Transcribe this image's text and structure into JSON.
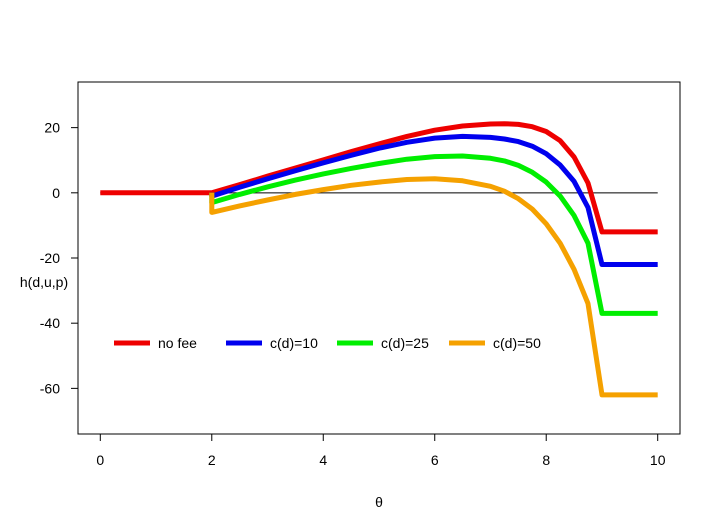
{
  "chart_data": {
    "type": "line",
    "title": "",
    "xlabel": "θ",
    "ylabel": "h(d,u,p)",
    "xlim": [
      -0.4,
      10.4
    ],
    "ylim": [
      -74,
      34
    ],
    "xticks": [
      0,
      2,
      4,
      6,
      8,
      10
    ],
    "yticks": [
      20,
      0,
      -20,
      -40,
      -60
    ],
    "grid": false,
    "legend_position": "bottom-left",
    "reference_line": {
      "y": 0,
      "x_from": 0,
      "x_to": 10,
      "color": "#000000"
    },
    "series": [
      {
        "name": "no fee",
        "color": "#ee0000",
        "x": [
          0,
          2,
          2.5,
          3,
          3.5,
          4,
          4.5,
          5,
          5.5,
          6,
          6.5,
          7,
          7.25,
          7.5,
          7.75,
          8,
          8.25,
          8.5,
          8.75,
          9,
          10
        ],
        "y": [
          0,
          0,
          2.5,
          5.1,
          7.6,
          10.1,
          12.6,
          15,
          17.3,
          19.2,
          20.5,
          21.1,
          21.2,
          21,
          20.3,
          18.8,
          16,
          11,
          3,
          -12,
          -12
        ]
      },
      {
        "name": "c(d)=10",
        "color": "#0000ee",
        "x": [
          2,
          2.5,
          3,
          3.5,
          4,
          4.5,
          5,
          5.5,
          6,
          6.5,
          7,
          7.25,
          7.5,
          7.75,
          8,
          8.25,
          8.5,
          8.75,
          9,
          10
        ],
        "y": [
          -1,
          1.7,
          4.3,
          6.8,
          9.2,
          11.5,
          13.7,
          15.5,
          16.8,
          17.3,
          17,
          16.5,
          15.7,
          14.3,
          12,
          8.5,
          3.5,
          -4.5,
          -22,
          -22
        ]
      },
      {
        "name": "c(d)=25",
        "color": "#00ee00",
        "x": [
          2,
          2.5,
          3,
          3.5,
          4,
          4.5,
          5,
          5.5,
          6,
          6.5,
          7,
          7.25,
          7.5,
          7.75,
          8,
          8.25,
          8.5,
          8.75,
          9,
          10
        ],
        "y": [
          -3,
          -0.5,
          1.8,
          3.9,
          5.8,
          7.5,
          9,
          10.3,
          11.1,
          11.3,
          10.6,
          9.8,
          8.4,
          6.3,
          3.3,
          -1,
          -7,
          -15.5,
          -37,
          -37
        ]
      },
      {
        "name": "c(d)=50",
        "color": "#f5a100",
        "x": [
          2,
          2.5,
          3,
          3.5,
          4,
          4.5,
          5,
          5.5,
          6,
          6.5,
          7,
          7.25,
          7.5,
          7.75,
          8,
          8.25,
          8.5,
          8.75,
          9,
          10
        ],
        "y": [
          -6,
          -4,
          -2.2,
          -0.5,
          1,
          2.3,
          3.3,
          4.1,
          4.3,
          3.7,
          2,
          0.5,
          -1.8,
          -5,
          -9.5,
          -15.5,
          -23.5,
          -34,
          -62,
          -62
        ]
      }
    ]
  }
}
